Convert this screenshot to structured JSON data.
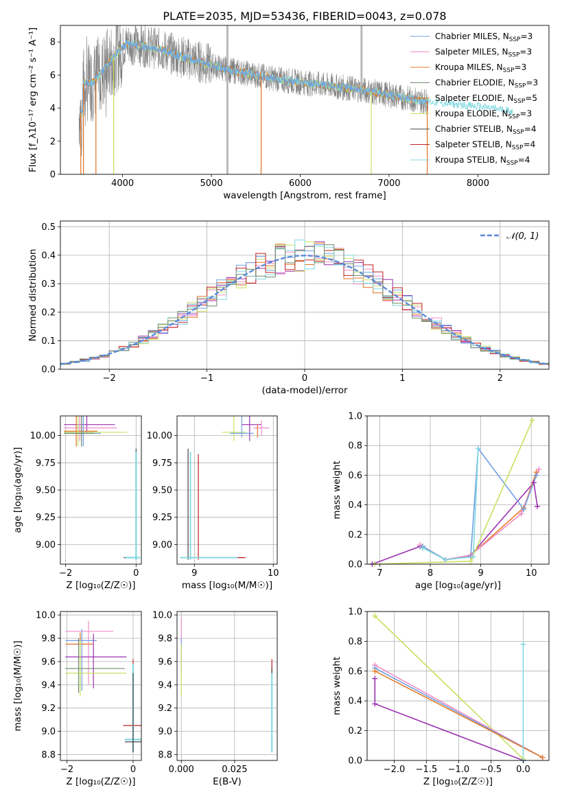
{
  "figure": {
    "title": "PLATE=2035, MJD=53436, FIBERID=0043, z=0.078"
  },
  "colors": {
    "chabrier_miles": "#6fa0e0",
    "salpeter_miles": "#f08cc8",
    "kroupa_miles": "#e87a28",
    "chabrier_elodie": "#6d8a6d",
    "salpeter_elodie": "#e07020",
    "kroupa_elodie": "#c8e060",
    "chabrier_stelib": "#444444",
    "salpeter_stelib": "#c02020",
    "kroupa_stelib": "#80d8e0",
    "purple": "#9a30b0",
    "data_grey": "#808080",
    "normal_curve": "#5a8ad8"
  },
  "chart_data": [
    {
      "id": "spectrum",
      "type": "line",
      "title": "PLATE=2035, MJD=53436, FIBERID=0043, z=0.078",
      "xlabel": "wavelength [Angstrom, rest frame]",
      "ylabel": "Flux [f_λ10⁻¹⁷ erg cm⁻² s⁻¹ A⁻¹]",
      "xlim": [
        3300,
        8800
      ],
      "ylim": [
        0,
        9
      ],
      "xticks": [
        "4000",
        "5000",
        "6000",
        "7000",
        "8000"
      ],
      "yticks": [
        "0",
        "2",
        "4",
        "6",
        "8"
      ],
      "grid": false,
      "legend_position": "top-right",
      "legend": [
        {
          "label": "Chabrier MILES, N",
          "sub": "SSP",
          "suffix": "=3"
        },
        {
          "label": "Salpeter MILES, N",
          "sub": "SSP",
          "suffix": "=3"
        },
        {
          "label": "Kroupa MILES, N",
          "sub": "SSP",
          "suffix": "=3"
        },
        {
          "label": "Chabrier ELODIE, N",
          "sub": "SSP",
          "suffix": "=3"
        },
        {
          "label": "Salpeter ELODIE, N",
          "sub": "SSP",
          "suffix": "=5"
        },
        {
          "label": "Kroupa ELODIE, N",
          "sub": "SSP",
          "suffix": "=3"
        },
        {
          "label": "Chabrier STELIB, N",
          "sub": "SSP",
          "suffix": "=4"
        },
        {
          "label": "Salpeter STELIB, N",
          "sub": "SSP",
          "suffix": "=4"
        },
        {
          "label": "Kroupa STELIB, N",
          "sub": "SSP",
          "suffix": "=4"
        }
      ],
      "continuum": {
        "x": [
          3550,
          3650,
          3800,
          3950,
          4050,
          4200,
          4400,
          4600,
          4800,
          5000,
          5200,
          5500,
          5800,
          6100,
          6400,
          6700,
          7000,
          7300,
          7600,
          8000,
          8300,
          8500
        ],
        "y": [
          5.5,
          5.5,
          6.4,
          7.4,
          7.9,
          7.8,
          7.6,
          7.2,
          6.9,
          6.6,
          6.3,
          6.0,
          5.7,
          5.5,
          5.3,
          5.1,
          4.8,
          4.5,
          4.3,
          4.1,
          3.9,
          3.7
        ]
      }
    },
    {
      "id": "residuals",
      "type": "line",
      "xlabel": "(data-model)/error",
      "ylabel": "Normed distribution",
      "xlim": [
        -2.5,
        2.5
      ],
      "ylim": [
        0,
        0.52
      ],
      "xticks": [
        "−2",
        "−1",
        "0",
        "1",
        "2"
      ],
      "yticks": [
        "0.0",
        "0.1",
        "0.2",
        "0.3",
        "0.4",
        "0.5"
      ],
      "grid": true,
      "legend_position": "top-right",
      "legend": [
        {
          "label": "𝒩(0, 1)"
        }
      ],
      "bin_width": 0.1
    },
    {
      "id": "z_vs_age",
      "type": "scatter",
      "xlabel": "Z [log₁₀(Z/Z☉)]",
      "ylabel": "age  [log₁₀(age/yr)]",
      "xlim": [
        -2.15,
        0.15
      ],
      "ylim": [
        8.82,
        10.18
      ],
      "xticks": [
        "−2",
        "0"
      ],
      "yticks": [
        "9.00",
        "9.25",
        "9.50",
        "9.75",
        "10.00"
      ],
      "grid": true
    },
    {
      "id": "mass_vs_age",
      "type": "scatter",
      "xlabel": "mass [log₁₀(M/M☉)]",
      "xlim": [
        8.78,
        10.05
      ],
      "ylim": [
        8.82,
        10.18
      ],
      "xticks": [
        "9",
        "10"
      ],
      "yticks": [
        "9.00",
        "9.25",
        "9.50",
        "9.75",
        "10.00"
      ],
      "grid": true
    },
    {
      "id": "age_vs_weight",
      "type": "line",
      "xlabel": "age  [log₁₀(age/yr)]",
      "ylabel": "mass weight",
      "xlim": [
        6.75,
        10.35
      ],
      "ylim": [
        0,
        1.0
      ],
      "xticks": [
        "7",
        "8",
        "9",
        "10"
      ],
      "yticks": [
        "0.0",
        "0.2",
        "0.4",
        "0.6",
        "0.8",
        "1.0"
      ],
      "grid": true,
      "series": [
        {
          "color": "#9a30b0",
          "x": [
            6.85,
            7.8,
            8.3,
            8.8,
            10.05,
            10.12
          ],
          "y": [
            0.0,
            0.12,
            0.03,
            0.06,
            0.55,
            0.39
          ]
        },
        {
          "color": "#e87a28",
          "x": [
            7.85,
            8.3,
            8.8,
            9.85,
            10.1
          ],
          "y": [
            0.12,
            0.03,
            0.06,
            0.38,
            0.62
          ]
        },
        {
          "color": "#f08cc8",
          "x": [
            7.8,
            8.3,
            8.8,
            9.8,
            10.15
          ],
          "y": [
            0.13,
            0.03,
            0.06,
            0.34,
            0.64
          ]
        },
        {
          "color": "#6fa0e0",
          "x": [
            7.85,
            8.3,
            8.8,
            8.95,
            9.85,
            10.1
          ],
          "y": [
            0.12,
            0.03,
            0.05,
            0.78,
            0.37,
            0.6
          ]
        },
        {
          "color": "#80d8e0",
          "x": [
            7.85,
            8.3,
            8.85,
            8.95
          ],
          "y": [
            0.11,
            0.03,
            0.05,
            0.78
          ]
        },
        {
          "color": "#c8e060",
          "x": [
            6.9,
            8.8,
            10.02
          ],
          "y": [
            0.0,
            0.02,
            0.97
          ]
        }
      ]
    },
    {
      "id": "z_vs_mass",
      "type": "scatter",
      "xlabel": "Z [log₁₀(Z/Z☉)]",
      "ylabel": "mass [log₁₀(M/M☉)]",
      "xlim": [
        -2.2,
        0.25
      ],
      "ylim": [
        8.75,
        10.03
      ],
      "xticks": [
        "−2",
        "0"
      ],
      "yticks": [
        "8.8",
        "9.0",
        "9.2",
        "9.4",
        "9.6",
        "9.8",
        "10.0"
      ],
      "grid": true
    },
    {
      "id": "ebv_vs_mass",
      "type": "scatter",
      "xlabel": "E(B-V)",
      "xlim": [
        -0.002,
        0.045
      ],
      "ylim": [
        8.75,
        10.03
      ],
      "xticks": [
        "0.000",
        "0.025"
      ],
      "yticks": [
        "8.8",
        "9.0",
        "9.2",
        "9.4",
        "9.6",
        "9.8",
        "10.0"
      ],
      "grid": true
    },
    {
      "id": "z_vs_weight",
      "type": "line",
      "xlabel": "Z [log₁₀(Z/Z☉)]",
      "ylabel": "mass weight",
      "xlim": [
        -2.42,
        0.4
      ],
      "ylim": [
        0,
        1.0
      ],
      "xticks": [
        "−2.0",
        "−1.5",
        "−1.0",
        "−0.5",
        "0.0"
      ],
      "yticks": [
        "0.0",
        "0.2",
        "0.4",
        "0.6",
        "0.8",
        "1.0"
      ],
      "grid": true,
      "series": [
        {
          "color": "#9a30b0",
          "x": [
            -2.3,
            -2.3,
            0.0
          ],
          "y": [
            0.55,
            0.38,
            0.0
          ]
        },
        {
          "color": "#c8e060",
          "x": [
            -2.3,
            0.0
          ],
          "y": [
            0.97,
            0.01
          ]
        },
        {
          "color": "#f08cc8",
          "x": [
            -2.3,
            0.3
          ],
          "y": [
            0.64,
            0.02
          ]
        },
        {
          "color": "#6fa0e0",
          "x": [
            -2.3,
            0.3
          ],
          "y": [
            0.62,
            0.02
          ]
        },
        {
          "color": "#e87a28",
          "x": [
            -2.3,
            0.3
          ],
          "y": [
            0.6,
            0.02
          ]
        },
        {
          "color": "#80d8e0",
          "x": [
            0.0,
            0.0
          ],
          "y": [
            0.0,
            0.78
          ]
        }
      ]
    }
  ]
}
